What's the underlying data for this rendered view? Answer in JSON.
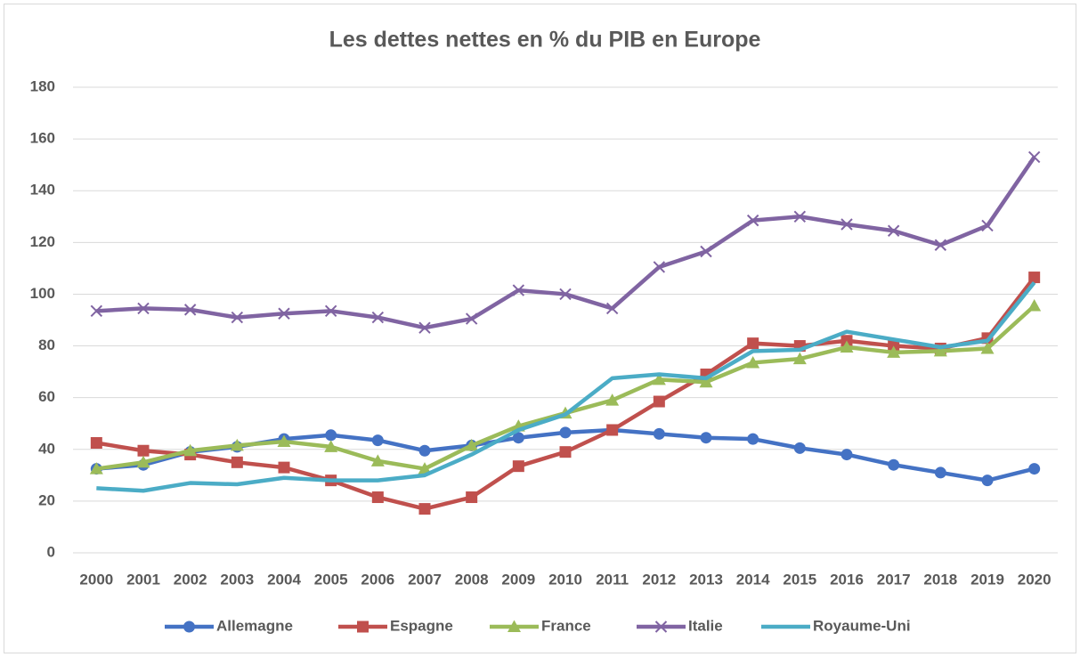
{
  "chart_data": {
    "type": "line",
    "title": "Les dettes nettes en % du PIB en Europe",
    "categories": [
      "2000",
      "2001",
      "2002",
      "2003",
      "2004",
      "2005",
      "2006",
      "2007",
      "2008",
      "2009",
      "2010",
      "2011",
      "2012",
      "2013",
      "2014",
      "2015",
      "2016",
      "2017",
      "2018",
      "2019",
      "2020"
    ],
    "series": [
      {
        "name": "Allemagne",
        "color": "#4472c4",
        "marker": "circle",
        "values": [
          32.5,
          34,
          39,
          41,
          44,
          45.5,
          43.5,
          39.5,
          41.5,
          44.5,
          46.5,
          47.5,
          46,
          44.5,
          44,
          40.5,
          38,
          34,
          31,
          28,
          32.5
        ]
      },
      {
        "name": "Espagne",
        "color": "#c0504d",
        "marker": "square",
        "values": [
          42.5,
          39.5,
          38,
          35,
          33,
          28,
          21.5,
          17,
          21.5,
          33.5,
          39,
          47.5,
          58.5,
          69,
          81,
          80,
          82,
          80,
          79,
          83,
          106.5
        ]
      },
      {
        "name": "France",
        "color": "#9bbb59",
        "marker": "triangle",
        "values": [
          32.5,
          35,
          39.5,
          41.5,
          43,
          41,
          35.5,
          32.5,
          41.5,
          49,
          54,
          59,
          67,
          66,
          73.5,
          75,
          79.5,
          77.5,
          78,
          79,
          95.5
        ]
      },
      {
        "name": "Italie",
        "color": "#8064a2",
        "marker": "x",
        "values": [
          93.5,
          94.5,
          94,
          91,
          92.5,
          93.5,
          91,
          87,
          90.5,
          101.5,
          100,
          94.5,
          110.5,
          116.5,
          128.5,
          130,
          127,
          124.5,
          119,
          126.5,
          153
        ]
      },
      {
        "name": "Royaume-Uni",
        "color": "#4bacc6",
        "marker": "none",
        "values": [
          25,
          24,
          27,
          26.5,
          29,
          28,
          28,
          30,
          38,
          47.5,
          53.5,
          67.5,
          69,
          67.5,
          78,
          78.5,
          85.5,
          82.5,
          79.5,
          82,
          104.5
        ]
      }
    ],
    "ylim": [
      0,
      180
    ],
    "yticks": [
      0,
      20,
      40,
      60,
      80,
      100,
      120,
      140,
      160,
      180
    ],
    "grid": true,
    "legend": "bottom"
  }
}
